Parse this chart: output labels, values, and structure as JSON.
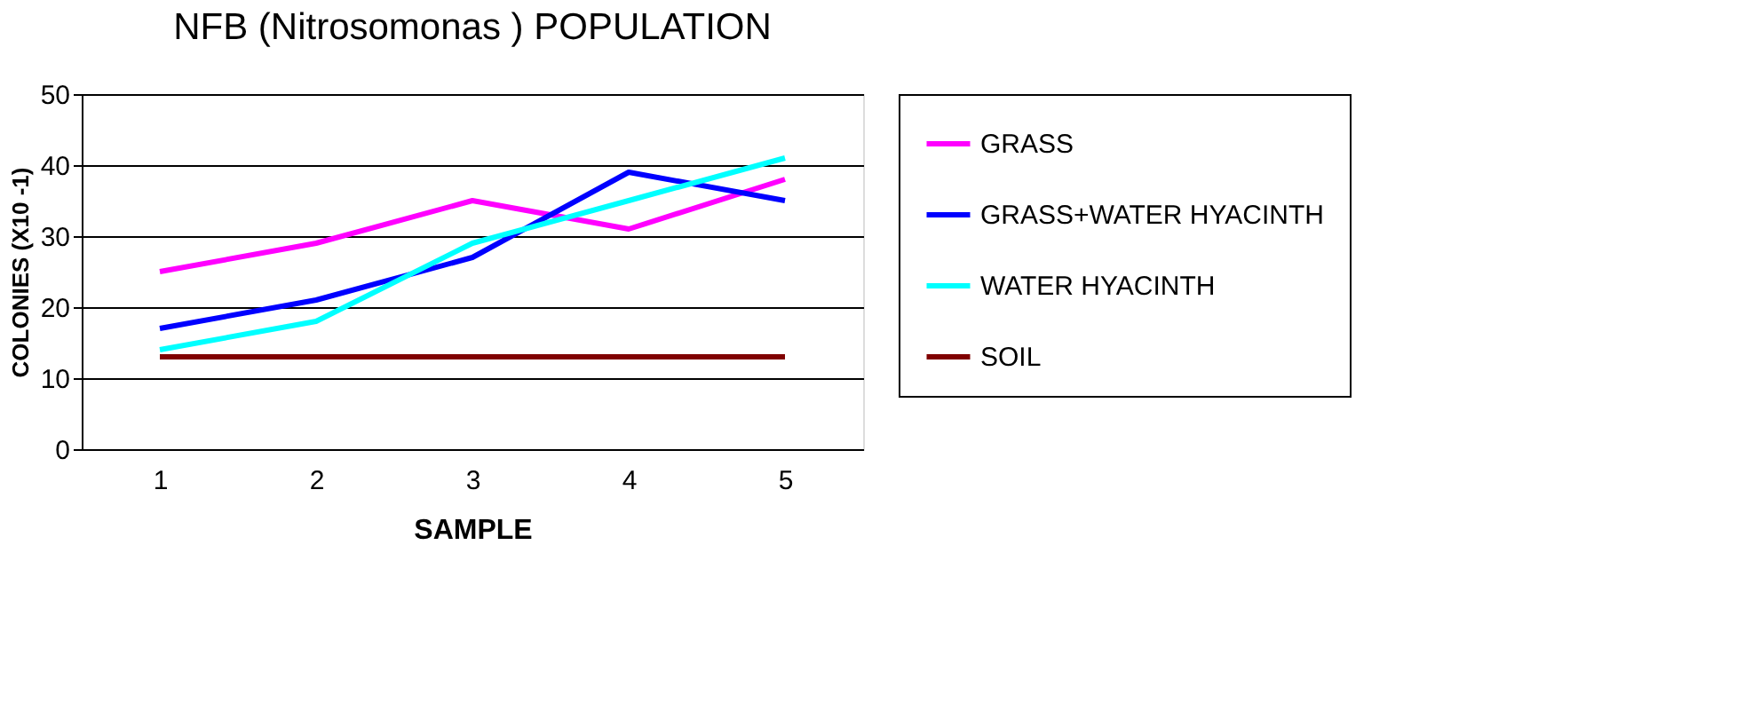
{
  "chart_data": {
    "type": "line",
    "title": "NFB (Nitrosomonas ) POPULATION",
    "xlabel": "SAMPLE",
    "ylabel": "COLONIES (X10 -1)",
    "categories": [
      "1",
      "2",
      "3",
      "4",
      "5"
    ],
    "series": [
      {
        "name": "GRASS",
        "color": "#ff00ff",
        "values": [
          25,
          29,
          35,
          31,
          38
        ]
      },
      {
        "name": "GRASS+WATER HYACINTH",
        "color": "#0000ff",
        "values": [
          17,
          21,
          27,
          39,
          35
        ]
      },
      {
        "name": "WATER HYACINTH",
        "color": "#00ffff",
        "values": [
          14,
          18,
          29,
          35,
          41
        ]
      },
      {
        "name": "SOIL",
        "color": "#800000",
        "values": [
          13,
          13,
          13,
          13,
          13
        ]
      }
    ],
    "ylim": [
      0,
      50
    ],
    "yticks": [
      0,
      10,
      20,
      30,
      40,
      50
    ],
    "grid": "y",
    "legend": "right",
    "marker": "none",
    "line_style": "solid"
  }
}
